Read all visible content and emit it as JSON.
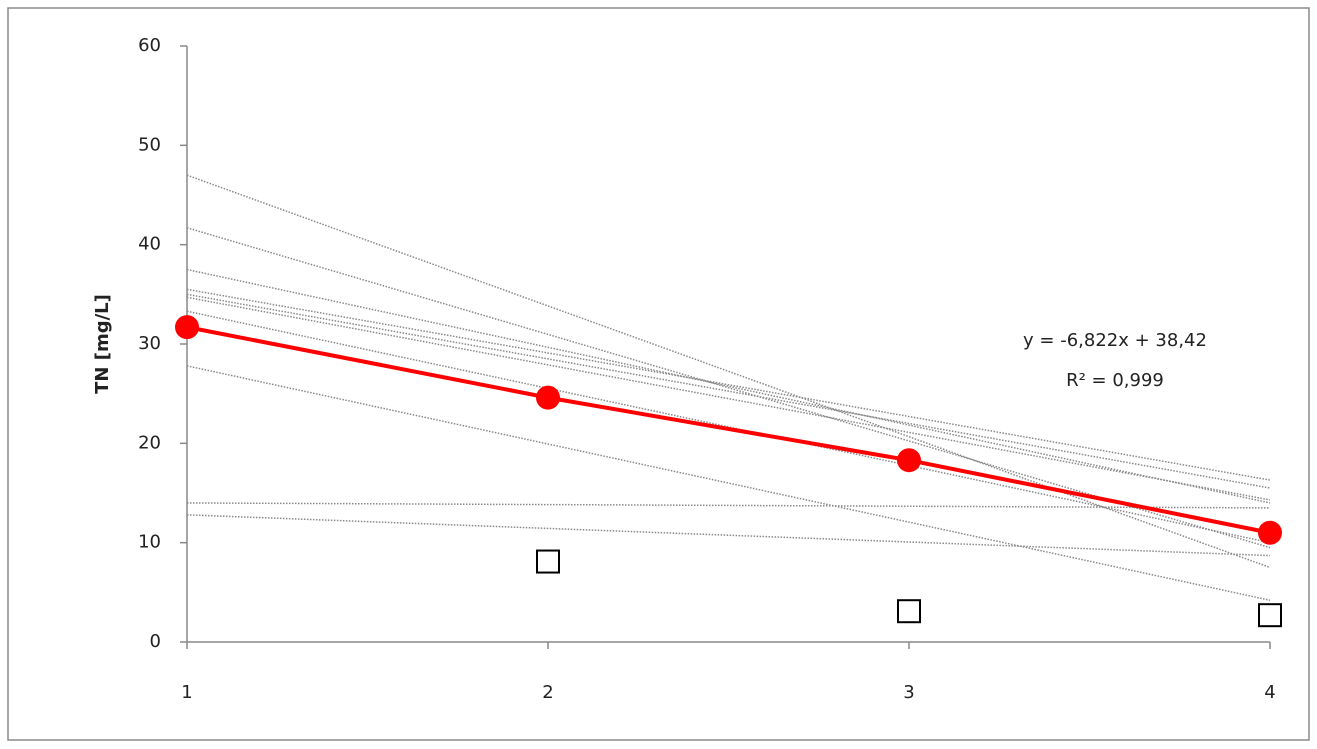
{
  "chart_data": {
    "type": "line",
    "y_label": "TN [mg/L]",
    "annotations": [
      "y = -6,822x + 38,42",
      "R² = 0,999"
    ],
    "xlim": [
      1,
      4
    ],
    "xticks": [
      1,
      2,
      3,
      4
    ],
    "ylim": [
      0,
      60
    ],
    "yticks": [
      0,
      10,
      20,
      30,
      40,
      50,
      60
    ],
    "grid": false,
    "series": [
      {
        "color": "#888888",
        "marker": "none",
        "line": "dotted",
        "x": [
          1,
          4
        ],
        "values": [
          47,
          7.5
        ]
      },
      {
        "color": "#888888",
        "marker": "none",
        "line": "dotted",
        "x": [
          1,
          4
        ],
        "values": [
          41.7,
          9.5
        ]
      },
      {
        "color": "#888888",
        "marker": "none",
        "line": "dotted",
        "x": [
          1,
          4
        ],
        "values": [
          37.5,
          14
        ]
      },
      {
        "color": "#888888",
        "marker": "none",
        "line": "dotted",
        "x": [
          1,
          4
        ],
        "values": [
          35.5,
          16.3
        ]
      },
      {
        "color": "#888888",
        "marker": "none",
        "line": "dotted",
        "x": [
          1,
          4
        ],
        "values": [
          35,
          15.5
        ]
      },
      {
        "color": "#888888",
        "marker": "none",
        "line": "dotted",
        "x": [
          1,
          4
        ],
        "values": [
          34.7,
          14.3
        ]
      },
      {
        "color": "#888888",
        "marker": "none",
        "line": "dotted",
        "x": [
          1,
          4
        ],
        "values": [
          33.3,
          10
        ]
      },
      {
        "color": "#888888",
        "marker": "none",
        "line": "dotted",
        "x": [
          1,
          4
        ],
        "values": [
          27.8,
          4.2
        ]
      },
      {
        "color": "#888888",
        "marker": "none",
        "line": "dotted",
        "x": [
          1,
          4
        ],
        "values": [
          14,
          13.5
        ]
      },
      {
        "color": "#888888",
        "marker": "none",
        "line": "dotted",
        "x": [
          1,
          4
        ],
        "values": [
          12.8,
          8.7
        ]
      },
      {
        "color": "#ff0000",
        "marker": "circle",
        "line": "solid",
        "x": [
          1,
          2,
          3,
          4
        ],
        "values": [
          31.7,
          24.6,
          18.3,
          11.0
        ]
      },
      {
        "color": "#000000",
        "marker": "square",
        "line": "none",
        "x": [
          2,
          3,
          4
        ],
        "values": [
          8.1,
          3.1,
          2.7
        ]
      }
    ]
  }
}
